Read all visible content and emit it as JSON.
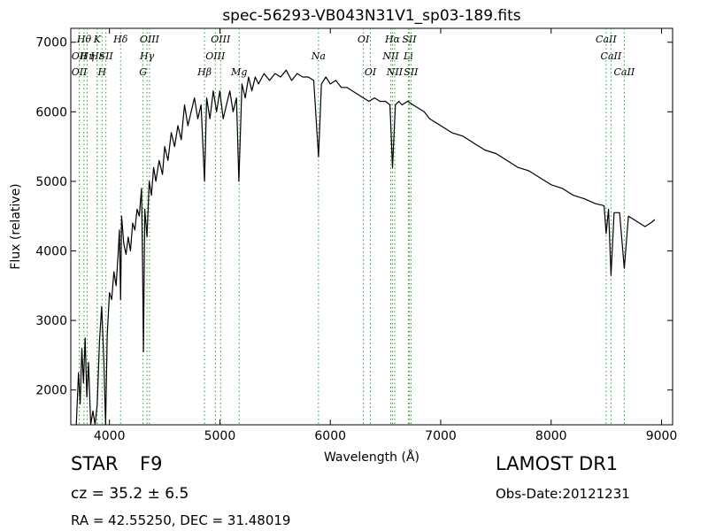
{
  "chart_data": {
    "type": "line",
    "title": "spec-56293-VB043N31V1_sp03-189.fits",
    "xlabel": "Wavelength (Å)",
    "ylabel": "Flux (relative)",
    "xlim": [
      3650,
      9100
    ],
    "ylim": [
      1500,
      7200
    ],
    "xticks": [
      4000,
      5000,
      6000,
      7000,
      8000,
      9000
    ],
    "yticks": [
      2000,
      3000,
      4000,
      5000,
      6000,
      7000
    ],
    "grid": false,
    "line_color": "#000000",
    "marker_color": "#2ca02c",
    "spectrum": [
      [
        3700,
        1500
      ],
      [
        3720,
        2250
      ],
      [
        3735,
        1800
      ],
      [
        3750,
        2600
      ],
      [
        3765,
        2100
      ],
      [
        3780,
        2750
      ],
      [
        3795,
        1900
      ],
      [
        3810,
        2400
      ],
      [
        3830,
        1500
      ],
      [
        3850,
        1700
      ],
      [
        3870,
        1500
      ],
      [
        3890,
        1800
      ],
      [
        3910,
        2700
      ],
      [
        3930,
        3200
      ],
      [
        3950,
        2400
      ],
      [
        3965,
        1500
      ],
      [
        3980,
        2800
      ],
      [
        4000,
        3400
      ],
      [
        4020,
        3300
      ],
      [
        4040,
        3700
      ],
      [
        4060,
        3500
      ],
      [
        4080,
        4000
      ],
      [
        4090,
        4300
      ],
      [
        4101,
        3300
      ],
      [
        4110,
        4500
      ],
      [
        4130,
        4100
      ],
      [
        4150,
        3950
      ],
      [
        4170,
        4200
      ],
      [
        4190,
        4000
      ],
      [
        4210,
        4400
      ],
      [
        4230,
        4300
      ],
      [
        4250,
        4600
      ],
      [
        4270,
        4500
      ],
      [
        4290,
        4900
      ],
      [
        4300,
        3800
      ],
      [
        4308,
        2550
      ],
      [
        4320,
        4600
      ],
      [
        4340,
        4200
      ],
      [
        4360,
        5000
      ],
      [
        4380,
        4800
      ],
      [
        4400,
        5200
      ],
      [
        4420,
        5000
      ],
      [
        4450,
        5300
      ],
      [
        4480,
        5100
      ],
      [
        4500,
        5500
      ],
      [
        4530,
        5300
      ],
      [
        4560,
        5700
      ],
      [
        4590,
        5500
      ],
      [
        4620,
        5800
      ],
      [
        4650,
        5600
      ],
      [
        4680,
        6100
      ],
      [
        4710,
        5800
      ],
      [
        4740,
        6000
      ],
      [
        4770,
        6200
      ],
      [
        4800,
        5900
      ],
      [
        4830,
        6100
      ],
      [
        4861,
        5000
      ],
      [
        4880,
        6200
      ],
      [
        4910,
        5900
      ],
      [
        4940,
        6300
      ],
      [
        4970,
        6000
      ],
      [
        5000,
        6300
      ],
      [
        5030,
        5900
      ],
      [
        5060,
        6100
      ],
      [
        5090,
        6300
      ],
      [
        5120,
        6000
      ],
      [
        5150,
        6200
      ],
      [
        5172,
        5000
      ],
      [
        5200,
        6400
      ],
      [
        5230,
        6200
      ],
      [
        5260,
        6500
      ],
      [
        5290,
        6300
      ],
      [
        5320,
        6500
      ],
      [
        5350,
        6400
      ],
      [
        5400,
        6550
      ],
      [
        5450,
        6450
      ],
      [
        5500,
        6550
      ],
      [
        5550,
        6500
      ],
      [
        5600,
        6600
      ],
      [
        5650,
        6450
      ],
      [
        5700,
        6550
      ],
      [
        5750,
        6500
      ],
      [
        5800,
        6500
      ],
      [
        5850,
        6450
      ],
      [
        5893,
        5350
      ],
      [
        5920,
        6400
      ],
      [
        5960,
        6500
      ],
      [
        6000,
        6400
      ],
      [
        6050,
        6450
      ],
      [
        6100,
        6350
      ],
      [
        6150,
        6350
      ],
      [
        6200,
        6300
      ],
      [
        6250,
        6250
      ],
      [
        6300,
        6200
      ],
      [
        6350,
        6150
      ],
      [
        6400,
        6200
      ],
      [
        6450,
        6150
      ],
      [
        6500,
        6150
      ],
      [
        6540,
        6100
      ],
      [
        6563,
        5200
      ],
      [
        6590,
        6100
      ],
      [
        6620,
        6150
      ],
      [
        6650,
        6100
      ],
      [
        6700,
        6150
      ],
      [
        6750,
        6100
      ],
      [
        6800,
        6050
      ],
      [
        6850,
        6000
      ],
      [
        6900,
        5900
      ],
      [
        7000,
        5800
      ],
      [
        7100,
        5700
      ],
      [
        7200,
        5650
      ],
      [
        7300,
        5550
      ],
      [
        7400,
        5450
      ],
      [
        7500,
        5400
      ],
      [
        7600,
        5300
      ],
      [
        7700,
        5200
      ],
      [
        7800,
        5150
      ],
      [
        7900,
        5050
      ],
      [
        8000,
        4950
      ],
      [
        8100,
        4900
      ],
      [
        8200,
        4800
      ],
      [
        8300,
        4750
      ],
      [
        8400,
        4680
      ],
      [
        8480,
        4650
      ],
      [
        8498,
        4250
      ],
      [
        8520,
        4600
      ],
      [
        8542,
        3650
      ],
      [
        8570,
        4550
      ],
      [
        8620,
        4550
      ],
      [
        8662,
        3750
      ],
      [
        8700,
        4500
      ],
      [
        8750,
        4450
      ],
      [
        8800,
        4400
      ],
      [
        8850,
        4350
      ],
      [
        8900,
        4400
      ],
      [
        8940,
        4450
      ]
    ],
    "line_markers": [
      {
        "w": 3727,
        "label": "OII",
        "row": 1
      },
      {
        "w": 3727,
        "label": "OII",
        "row": 2
      },
      {
        "w": 3770,
        "label": "Hθ",
        "row": 0
      },
      {
        "w": 3798,
        "label": "Hη",
        "row": 1
      },
      {
        "w": 3889,
        "label": "K",
        "row": 0
      },
      {
        "w": 3889,
        "label": "Hε",
        "row": 1
      },
      {
        "w": 3933,
        "label": "H",
        "row": 2
      },
      {
        "w": 3968,
        "label": "SII",
        "row": 1
      },
      {
        "w": 4101,
        "label": "Hδ",
        "row": 0
      },
      {
        "w": 4304,
        "label": "G",
        "row": 2
      },
      {
        "w": 4340,
        "label": "Hγ",
        "row": 1
      },
      {
        "w": 4363,
        "label": "OIII",
        "row": 0
      },
      {
        "w": 4861,
        "label": "Hβ",
        "row": 2
      },
      {
        "w": 4959,
        "label": "OIII",
        "row": 1
      },
      {
        "w": 5007,
        "label": "OIII",
        "row": 0
      },
      {
        "w": 5175,
        "label": "Mg",
        "row": 2
      },
      {
        "w": 5893,
        "label": "Na",
        "row": 1
      },
      {
        "w": 6300,
        "label": "OI",
        "row": 0
      },
      {
        "w": 6363,
        "label": "OI",
        "row": 2
      },
      {
        "w": 6548,
        "label": "NII",
        "row": 1
      },
      {
        "w": 6563,
        "label": "Hα",
        "row": 0
      },
      {
        "w": 6583,
        "label": "NII",
        "row": 2
      },
      {
        "w": 6707,
        "label": "Li",
        "row": 1
      },
      {
        "w": 6716,
        "label": "SII",
        "row": 0
      },
      {
        "w": 6731,
        "label": "SII",
        "row": 2
      },
      {
        "w": 8498,
        "label": "CaII",
        "row": 0
      },
      {
        "w": 8542,
        "label": "CaII",
        "row": 1
      },
      {
        "w": 8662,
        "label": "CaII",
        "row": 2
      }
    ]
  },
  "info": {
    "object_type": "STAR",
    "subclass": "F9",
    "survey": "LAMOST DR1",
    "cz": "cz = 35.2 ± 6.5",
    "obs_date": "Obs-Date:20121231",
    "radec": "RA = 42.55250, DEC = 31.48019"
  }
}
